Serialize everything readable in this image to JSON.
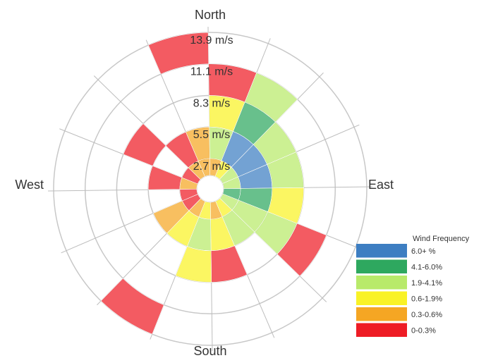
{
  "chart_data": {
    "type": "wind-rose",
    "title": "",
    "directions": [
      "North",
      "East",
      "South",
      "West"
    ],
    "speed_rings": [
      "2.7 m/s",
      "5.5 m/s",
      "8.3 m/s",
      "11.1 m/s",
      "13.9 m/s"
    ],
    "ring_values": [
      2.7,
      5.5,
      8.3,
      11.1,
      13.9
    ],
    "sector_count": 16,
    "legend": {
      "title": "Wind Frequency",
      "placement": "bottom-right",
      "entries": [
        {
          "label": "6.0+ %",
          "color": "#3d7ec2"
        },
        {
          "label": "4.1-6.0%",
          "color": "#2ea85f"
        },
        {
          "label": "1.9-4.1%",
          "color": "#b8ea6a"
        },
        {
          "label": "0.6-1.9%",
          "color": "#f9f226"
        },
        {
          "label": "0.3-0.6%",
          "color": "#f5a623"
        },
        {
          "label": "0-0.3%",
          "color": "#ee1c25"
        }
      ]
    },
    "cells": [
      {
        "sector": 0,
        "speed": [
          0,
          2.7
        ],
        "class": 4
      },
      {
        "sector": 0,
        "speed": [
          2.7,
          5.5
        ],
        "class": 4
      },
      {
        "sector": 1,
        "speed": [
          0,
          2.7
        ],
        "class": 4
      },
      {
        "sector": 1,
        "speed": [
          2.7,
          5.5
        ],
        "class": 2
      },
      {
        "sector": 1,
        "speed": [
          5.5,
          8.3
        ],
        "class": 3
      },
      {
        "sector": 1,
        "speed": [
          8.3,
          11.1
        ],
        "class": 5
      },
      {
        "sector": 2,
        "speed": [
          0,
          2.7
        ],
        "class": 3
      },
      {
        "sector": 2,
        "speed": [
          2.7,
          5.5
        ],
        "class": 0
      },
      {
        "sector": 2,
        "speed": [
          5.5,
          8.3
        ],
        "class": 1
      },
      {
        "sector": 2,
        "speed": [
          8.3,
          11.1
        ],
        "class": 2
      },
      {
        "sector": 3,
        "speed": [
          0,
          2.7
        ],
        "class": 2
      },
      {
        "sector": 3,
        "speed": [
          2.7,
          5.5
        ],
        "class": 0
      },
      {
        "sector": 3,
        "speed": [
          5.5,
          8.3
        ],
        "class": 2
      },
      {
        "sector": 4,
        "speed": [
          0,
          2.7
        ],
        "class": 2
      },
      {
        "sector": 4,
        "speed": [
          2.7,
          5.5
        ],
        "class": 0
      },
      {
        "sector": 4,
        "speed": [
          5.5,
          8.3
        ],
        "class": 2
      },
      {
        "sector": 5,
        "speed": [
          0,
          2.7
        ],
        "class": 1
      },
      {
        "sector": 5,
        "speed": [
          2.7,
          5.5
        ],
        "class": 1
      },
      {
        "sector": 5,
        "speed": [
          5.5,
          8.3
        ],
        "class": 3
      },
      {
        "sector": 6,
        "speed": [
          0,
          2.7
        ],
        "class": 2
      },
      {
        "sector": 6,
        "speed": [
          2.7,
          5.5
        ],
        "class": 2
      },
      {
        "sector": 6,
        "speed": [
          5.5,
          8.3
        ],
        "class": 2
      },
      {
        "sector": 6,
        "speed": [
          8.3,
          11.1
        ],
        "class": 5
      },
      {
        "sector": 7,
        "speed": [
          0,
          2.7
        ],
        "class": 3
      },
      {
        "sector": 7,
        "speed": [
          2.7,
          5.5
        ],
        "class": 2
      },
      {
        "sector": 8,
        "speed": [
          0,
          2.7
        ],
        "class": 4
      },
      {
        "sector": 8,
        "speed": [
          2.7,
          5.5
        ],
        "class": 3
      },
      {
        "sector": 8,
        "speed": [
          5.5,
          8.3
        ],
        "class": 5
      },
      {
        "sector": 9,
        "speed": [
          0,
          2.7
        ],
        "class": 3
      },
      {
        "sector": 9,
        "speed": [
          2.7,
          5.5
        ],
        "class": 2
      },
      {
        "sector": 9,
        "speed": [
          5.5,
          8.3
        ],
        "class": 3
      },
      {
        "sector": 10,
        "speed": [
          0,
          2.7
        ],
        "class": 4
      },
      {
        "sector": 10,
        "speed": [
          2.7,
          5.5
        ],
        "class": 3
      },
      {
        "sector": 10,
        "speed": [
          11.1,
          13.9
        ],
        "class": 5
      },
      {
        "sector": 11,
        "speed": [
          0,
          2.7
        ],
        "class": 5
      },
      {
        "sector": 11,
        "speed": [
          2.7,
          5.5
        ],
        "class": 4
      },
      {
        "sector": 12,
        "speed": [
          0,
          2.7
        ],
        "class": 5
      },
      {
        "sector": 13,
        "speed": [
          0,
          2.7
        ],
        "class": 4
      },
      {
        "sector": 13,
        "speed": [
          2.7,
          5.5
        ],
        "class": 5
      },
      {
        "sector": 14,
        "speed": [
          0,
          2.7
        ],
        "class": 5
      },
      {
        "sector": 14,
        "speed": [
          5.5,
          8.3
        ],
        "class": 5
      },
      {
        "sector": 15,
        "speed": [
          0,
          2.7
        ],
        "class": 4
      },
      {
        "sector": 15,
        "speed": [
          2.7,
          5.5
        ],
        "class": 5
      },
      {
        "sector": 0,
        "speed": [
          11.1,
          13.9
        ],
        "class": 5
      }
    ],
    "grid": true
  }
}
